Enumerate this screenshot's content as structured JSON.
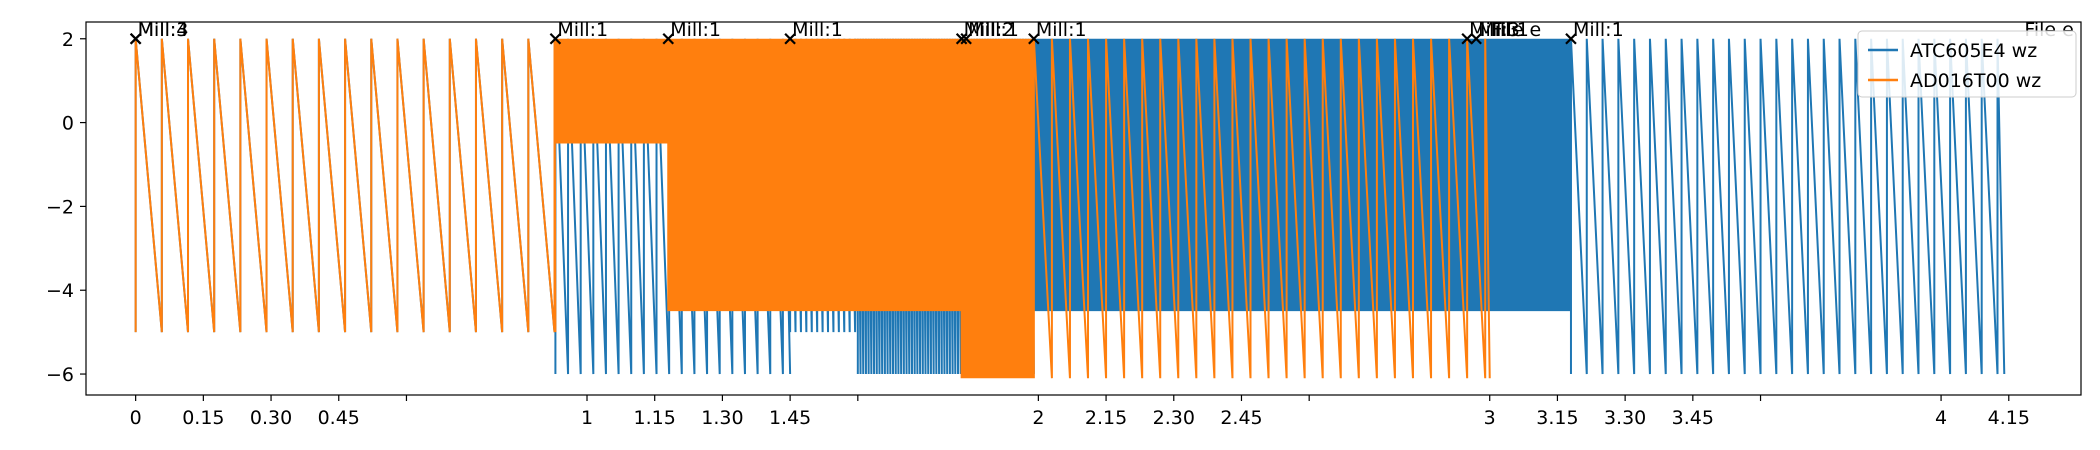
{
  "chart_data": {
    "type": "line",
    "title": "",
    "xlabel": "",
    "ylabel": "",
    "xlim": [
      -0.11,
      4.31
    ],
    "ylim": [
      -6.5,
      2.4
    ],
    "x_ticks": [
      0,
      0.15,
      0.3,
      0.45,
      0.6,
      1,
      1.15,
      1.3,
      1.45,
      1.6,
      2,
      2.15,
      2.3,
      2.45,
      2.6,
      3,
      3.15,
      3.3,
      3.45,
      3.6,
      4,
      4.15
    ],
    "x_tick_labels": [
      "0",
      "0.15",
      "0.30",
      "0.45",
      "",
      "1",
      "1.15",
      "1.30",
      "1.45",
      "",
      "2",
      "2.15",
      "2.30",
      "2.45",
      "",
      "3",
      "3.15",
      "3.30",
      "3.45",
      "",
      "4",
      "4.15"
    ],
    "y_ticks": [
      2,
      0,
      -2,
      -4,
      -6
    ],
    "y_tick_labels": [
      "2",
      "0",
      "−2",
      "−4",
      "−6"
    ],
    "legend": {
      "placement": "top-right",
      "entries": [
        "ATC605E4 wz",
        "AD016T00 wz"
      ]
    },
    "series": [
      {
        "name": "ATC605E4 wz",
        "color": "#1f77b4",
        "segments": [
          {
            "x_start": 0.0,
            "x_end": 0.93,
            "period": 0.058,
            "high": 2,
            "low": -5
          },
          {
            "x_start": 0.93,
            "x_end": 1.45,
            "period": 0.028,
            "high": 2,
            "low": -6
          },
          {
            "x_start": 1.45,
            "x_end": 1.6,
            "period": 0.012,
            "high": 2,
            "low": -5
          },
          {
            "x_start": 1.6,
            "x_end": 1.99,
            "period": 0.006,
            "high": 2,
            "low": -6
          },
          {
            "x_start": 1.99,
            "x_end": 3.18,
            "period": 0.0035,
            "high": 2,
            "low": -4.5
          },
          {
            "x_start": 3.18,
            "x_end": 4.14,
            "period": 0.035,
            "high": 2,
            "low": -6
          }
        ]
      },
      {
        "name": "AD016T00 wz",
        "color": "#ff7f0e",
        "segments": [
          {
            "x_start": 0.0,
            "x_end": 0.93,
            "period": 0.058,
            "high": 2,
            "low": -5
          },
          {
            "x_start": 0.93,
            "x_end": 1.18,
            "period": 0.003,
            "high": 2,
            "low": -0.5
          },
          {
            "x_start": 1.18,
            "x_end": 1.83,
            "period": 0.002,
            "high": 2,
            "low": -4.5
          },
          {
            "x_start": 1.83,
            "x_end": 1.99,
            "period": 0.002,
            "high": 2,
            "low": -6.1
          },
          {
            "x_start": 1.99,
            "x_end": 3.0,
            "period": 0.04,
            "high": 2,
            "low": -6.1
          }
        ]
      }
    ],
    "annotations": [
      {
        "text": "Mill:3",
        "x": 0.0,
        "y": 2.0
      },
      {
        "text": "Mill:4",
        "x": 0.0,
        "y": 2.0
      },
      {
        "text": "Mill:1",
        "x": 0.93,
        "y": 2.0
      },
      {
        "text": "Mill:1",
        "x": 1.18,
        "y": 2.0
      },
      {
        "text": "Mill:1",
        "x": 1.45,
        "y": 2.0
      },
      {
        "text": "Mill:2",
        "x": 1.83,
        "y": 2.0
      },
      {
        "text": "Mill:1",
        "x": 1.84,
        "y": 2.0
      },
      {
        "text": "Mill:1",
        "x": 1.99,
        "y": 2.0
      },
      {
        "text": "Mill:3",
        "x": 2.95,
        "y": 2.0
      },
      {
        "text": "Mill:1",
        "x": 2.97,
        "y": 2.0
      },
      {
        "text": "File e",
        "x": 3.0,
        "y": 2.0
      },
      {
        "text": "Mill:1",
        "x": 3.18,
        "y": 2.0
      },
      {
        "text": "File e",
        "x": 4.18,
        "y": 2.0
      }
    ]
  }
}
